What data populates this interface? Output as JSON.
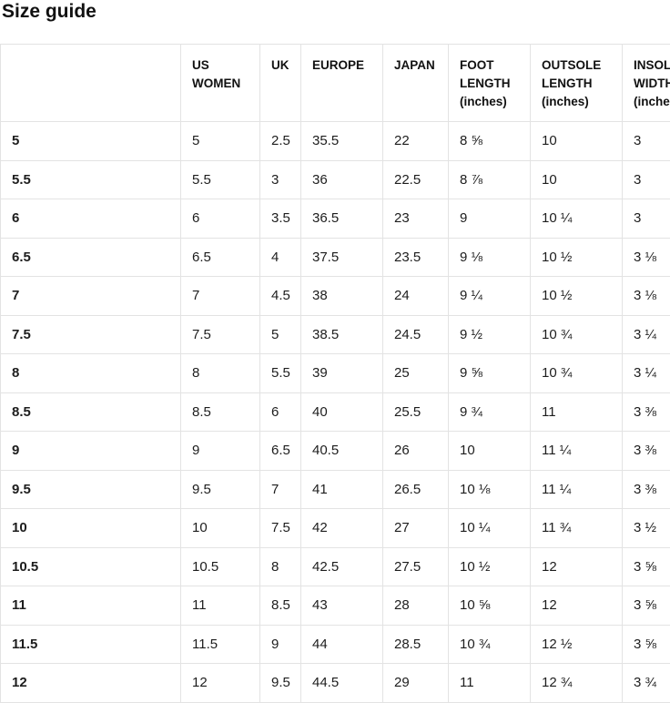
{
  "page": {
    "title": "Size guide"
  },
  "colors": {
    "background": "#ffffff",
    "border": "#e3e3e3",
    "heading_text": "#111111",
    "cell_text": "#1d1d1d"
  },
  "table": {
    "columns": [
      {
        "key": "size",
        "label": ""
      },
      {
        "key": "us-women",
        "label": "US WOMEN"
      },
      {
        "key": "uk",
        "label": "UK"
      },
      {
        "key": "europe",
        "label": "EUROPE"
      },
      {
        "key": "japan",
        "label": "JAPAN"
      },
      {
        "key": "foot-length",
        "label": "FOOT LENGTH (inches)"
      },
      {
        "key": "outsole-length",
        "label": "OUTSOLE LENGTH (inches)"
      },
      {
        "key": "insole-width",
        "label": "INSOLE WIDTH (inches)"
      }
    ],
    "rows": [
      [
        "5",
        "5",
        "2.5",
        "35.5",
        "22",
        "8 ⅝",
        "10",
        "3"
      ],
      [
        "5.5",
        "5.5",
        "3",
        "36",
        "22.5",
        "8 ⅞",
        "10",
        "3"
      ],
      [
        "6",
        "6",
        "3.5",
        "36.5",
        "23",
        "9",
        "10 ¼",
        "3"
      ],
      [
        "6.5",
        "6.5",
        "4",
        "37.5",
        "23.5",
        "9 ⅛",
        "10 ½",
        "3 ⅛"
      ],
      [
        "7",
        "7",
        "4.5",
        "38",
        "24",
        "9 ¼",
        "10 ½",
        "3 ⅛"
      ],
      [
        "7.5",
        "7.5",
        "5",
        "38.5",
        "24.5",
        "9 ½",
        "10 ¾",
        "3 ¼"
      ],
      [
        "8",
        "8",
        "5.5",
        "39",
        "25",
        "9 ⅝",
        "10 ¾",
        "3 ¼"
      ],
      [
        "8.5",
        "8.5",
        "6",
        "40",
        "25.5",
        "9 ¾",
        "11",
        "3 ⅜"
      ],
      [
        "9",
        "9",
        "6.5",
        "40.5",
        "26",
        "10",
        "11 ¼",
        "3 ⅜"
      ],
      [
        "9.5",
        "9.5",
        "7",
        "41",
        "26.5",
        "10 ⅛",
        "11 ¼",
        "3 ⅜"
      ],
      [
        "10",
        "10",
        "7.5",
        "42",
        "27",
        "10 ¼",
        "11 ¾",
        "3 ½"
      ],
      [
        "10.5",
        "10.5",
        "8",
        "42.5",
        "27.5",
        "10 ½",
        "12",
        "3 ⅝"
      ],
      [
        "11",
        "11",
        "8.5",
        "43",
        "28",
        "10 ⅝",
        "12",
        "3 ⅝"
      ],
      [
        "11.5",
        "11.5",
        "9",
        "44",
        "28.5",
        "10 ¾",
        "12 ½",
        "3 ⅝"
      ],
      [
        "12",
        "12",
        "9.5",
        "44.5",
        "29",
        "11",
        "12 ¾",
        "3 ¾"
      ]
    ]
  }
}
